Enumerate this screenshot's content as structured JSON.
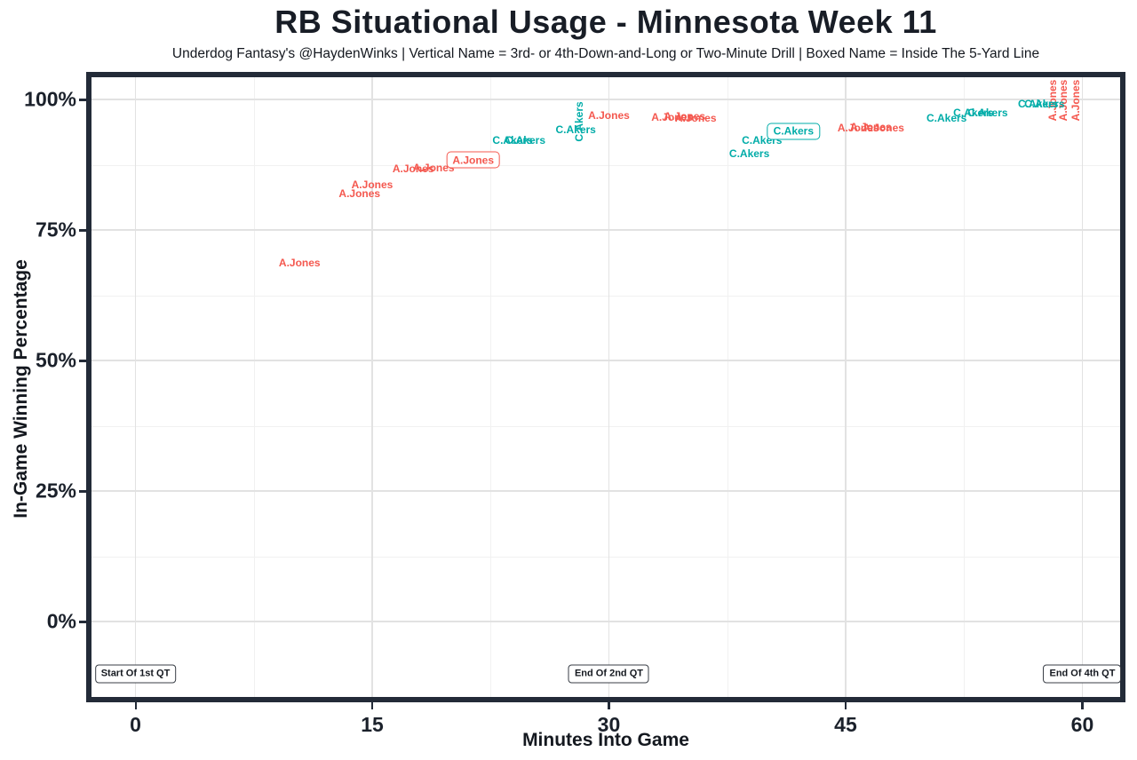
{
  "page": {
    "title": "RB Situational Usage - Minnesota Week 11",
    "subtitle": "Underdog Fantasy's @HaydenWinks | Vertical Name = 3rd- or 4th-Down-and-Long or Two-Minute Drill | Boxed Name = Inside The 5-Yard Line"
  },
  "chart_data": {
    "type": "scatter",
    "title": "RB Situational Usage - Minnesota Week 11",
    "subtitle": "Underdog Fantasy's @HaydenWinks | Vertical Name = 3rd- or 4th-Down-and-Long or Two-Minute Drill | Boxed Name = Inside The 5-Yard Line",
    "xlabel": "Minutes Into Game",
    "ylabel": "In-Game Winning Percentage",
    "xlim": [
      -2.7,
      62.4
    ],
    "ylim": [
      -14.5,
      104.2
    ],
    "grid": true,
    "legend": "none",
    "point_marker": "player-name-text",
    "label_styles": {
      "vertical": "3rd- or 4th-Down-and-Long or Two-Minute Drill",
      "boxed": "Inside The 5-Yard Line",
      "plain": "standard snap"
    },
    "x_ticks": [
      {
        "value": 0,
        "label": "0"
      },
      {
        "value": 15,
        "label": "15"
      },
      {
        "value": 30,
        "label": "30"
      },
      {
        "value": 45,
        "label": "45"
      },
      {
        "value": 60,
        "label": "60"
      }
    ],
    "y_ticks": [
      {
        "value": 0,
        "label": "0%"
      },
      {
        "value": 25,
        "label": "25%"
      },
      {
        "value": 50,
        "label": "50%"
      },
      {
        "value": 75,
        "label": "75%"
      },
      {
        "value": 100,
        "label": "100%"
      }
    ],
    "x_minor_ticks": [
      7.5,
      22.5,
      37.5,
      52.5
    ],
    "y_minor_ticks": [
      12.5,
      37.5,
      62.5,
      87.5
    ],
    "series": [
      {
        "name": "A.Jones",
        "color": "#f4584f",
        "points": [
          {
            "x": 10.4,
            "y": 68.7,
            "style": "plain"
          },
          {
            "x": 14.2,
            "y": 82.0,
            "style": "plain"
          },
          {
            "x": 15.0,
            "y": 83.7,
            "style": "plain"
          },
          {
            "x": 17.6,
            "y": 86.7,
            "style": "plain"
          },
          {
            "x": 18.9,
            "y": 86.9,
            "style": "plain"
          },
          {
            "x": 21.4,
            "y": 88.4,
            "style": "boxed"
          },
          {
            "x": 30.0,
            "y": 96.9,
            "style": "plain"
          },
          {
            "x": 34.0,
            "y": 96.6,
            "style": "plain"
          },
          {
            "x": 34.8,
            "y": 96.8,
            "style": "plain"
          },
          {
            "x": 35.5,
            "y": 96.4,
            "style": "plain"
          },
          {
            "x": 45.8,
            "y": 94.6,
            "style": "plain"
          },
          {
            "x": 46.6,
            "y": 94.8,
            "style": "plain"
          },
          {
            "x": 47.4,
            "y": 94.6,
            "style": "plain"
          },
          {
            "x": 58.1,
            "y": 99.8,
            "style": "vertical"
          },
          {
            "x": 58.8,
            "y": 99.8,
            "style": "vertical"
          },
          {
            "x": 59.6,
            "y": 99.8,
            "style": "vertical"
          }
        ]
      },
      {
        "name": "C.Akers",
        "color": "#00aca8",
        "points": [
          {
            "x": 23.9,
            "y": 92.2,
            "style": "plain"
          },
          {
            "x": 24.7,
            "y": 92.2,
            "style": "plain"
          },
          {
            "x": 27.9,
            "y": 94.2,
            "style": "plain"
          },
          {
            "x": 28.1,
            "y": 95.7,
            "style": "vertical"
          },
          {
            "x": 38.9,
            "y": 89.6,
            "style": "plain"
          },
          {
            "x": 39.7,
            "y": 92.2,
            "style": "plain"
          },
          {
            "x": 41.7,
            "y": 93.9,
            "style": "boxed"
          },
          {
            "x": 51.4,
            "y": 96.4,
            "style": "plain"
          },
          {
            "x": 53.1,
            "y": 97.4,
            "style": "plain"
          },
          {
            "x": 54.0,
            "y": 97.4,
            "style": "plain"
          },
          {
            "x": 57.2,
            "y": 99.1,
            "style": "plain"
          },
          {
            "x": 57.6,
            "y": 99.1,
            "style": "plain"
          }
        ]
      }
    ],
    "annotations": [
      {
        "label": "Start Of 1st QT",
        "x": 0,
        "y": -10
      },
      {
        "label": "End Of 2nd QT",
        "x": 30,
        "y": -10
      },
      {
        "label": "End Of 4th QT",
        "x": 60,
        "y": -10
      }
    ]
  }
}
